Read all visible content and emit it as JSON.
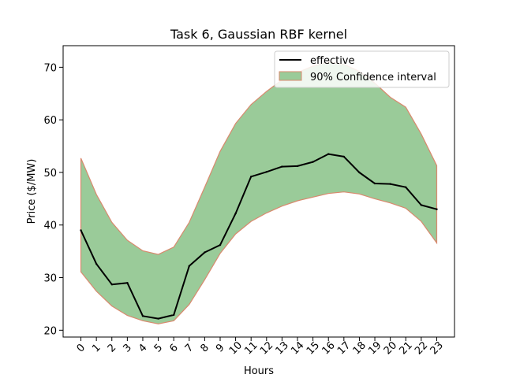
{
  "chart_data": {
    "type": "line",
    "title": "Task 6, Gaussian RBF kernel",
    "xlabel": "Hours",
    "ylabel": "Price ($/MW)",
    "x": [
      0,
      1,
      2,
      3,
      4,
      5,
      6,
      7,
      8,
      9,
      10,
      11,
      12,
      13,
      14,
      15,
      16,
      17,
      18,
      19,
      20,
      21,
      22,
      23
    ],
    "xlim": [
      -1.15,
      24.15
    ],
    "ylim": [
      18.7,
      74.1
    ],
    "yticks": [
      20,
      30,
      40,
      50,
      60,
      70
    ],
    "grid": false,
    "legend_position": "top-right",
    "series": [
      {
        "name": "effective",
        "color": "#000000",
        "values": [
          39.0,
          32.6,
          28.7,
          29.0,
          22.7,
          22.2,
          22.9,
          32.2,
          34.8,
          36.2,
          42.2,
          49.2,
          50.1,
          51.1,
          51.2,
          52.0,
          53.5,
          53.0,
          50.0,
          47.9,
          47.8,
          47.2,
          43.8,
          43.0
        ]
      },
      {
        "name": "90% Confidence interval",
        "type": "area",
        "fill": "#9acb99",
        "edge": "#d9896e",
        "upper": [
          52.7,
          45.8,
          40.5,
          37.1,
          35.1,
          34.4,
          35.8,
          40.5,
          47.2,
          54.0,
          59.3,
          62.9,
          65.4,
          67.6,
          69.0,
          70.2,
          71.0,
          70.6,
          69.2,
          67.0,
          64.3,
          62.4,
          57.3,
          51.3
        ],
        "lower": [
          31.1,
          27.4,
          24.6,
          22.8,
          21.8,
          21.2,
          21.8,
          24.9,
          29.6,
          34.6,
          38.3,
          40.7,
          42.3,
          43.6,
          44.6,
          45.3,
          46.0,
          46.3,
          45.9,
          45.0,
          44.2,
          43.2,
          40.7,
          36.6
        ]
      }
    ]
  }
}
